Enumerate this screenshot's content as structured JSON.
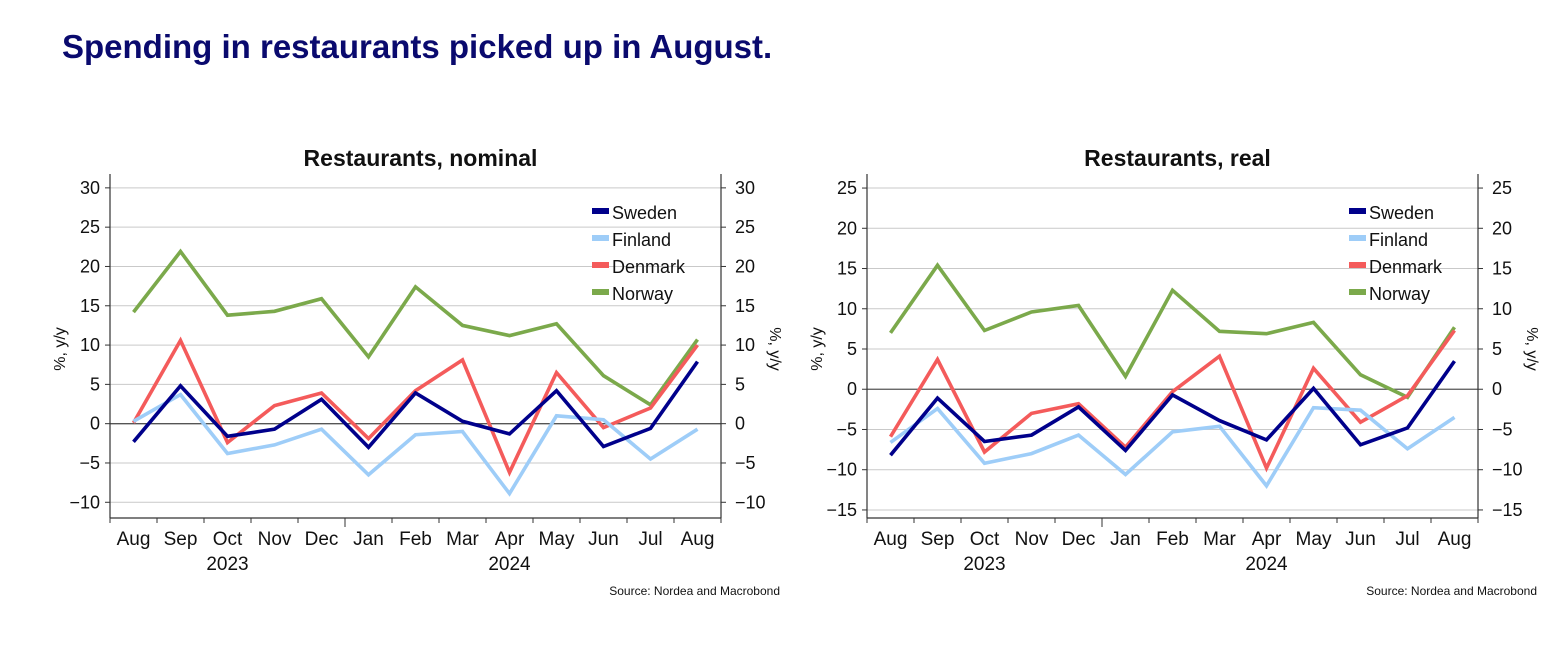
{
  "page": {
    "headline": "Spending in restaurants picked up in August."
  },
  "chart_data": [
    {
      "type": "line",
      "title": "Restaurants, nominal",
      "ylabel_left": "%, y/y",
      "ylabel_right": "%, y/y",
      "categories": [
        "Aug",
        "Sep",
        "Oct",
        "Nov",
        "Dec",
        "Jan",
        "Feb",
        "Mar",
        "Apr",
        "May",
        "Jun",
        "Jul",
        "Aug"
      ],
      "year_labels": [
        {
          "label": "2023",
          "category_index": 2
        },
        {
          "label": "2024",
          "category_index": 8
        }
      ],
      "ylim": [
        -12,
        31
      ],
      "yticks": [
        -10,
        -5,
        0,
        5,
        10,
        15,
        20,
        25,
        30
      ],
      "grid": true,
      "legend_position": "top-right",
      "source": "Source: Nordea and Macrobond",
      "series": [
        {
          "name": "Sweden",
          "color": "#00008b",
          "values": [
            -2.3,
            4.8,
            -1.6,
            -0.7,
            3.1,
            -3.0,
            3.9,
            0.3,
            -1.3,
            4.2,
            -2.9,
            -0.6,
            7.9
          ]
        },
        {
          "name": "Finland",
          "color": "#9ecdf8",
          "values": [
            0.3,
            3.7,
            -3.8,
            -2.7,
            -0.7,
            -6.5,
            -1.4,
            -1.0,
            -8.9,
            1.0,
            0.5,
            -4.5,
            -0.7
          ]
        },
        {
          "name": "Denmark",
          "color": "#f45b5b",
          "values": [
            0.1,
            10.6,
            -2.4,
            2.3,
            3.9,
            -1.9,
            4.2,
            8.1,
            -6.2,
            6.5,
            -0.5,
            2.0,
            10.0
          ]
        },
        {
          "name": "Norway",
          "color": "#7ba94b",
          "values": [
            14.2,
            21.9,
            13.8,
            14.3,
            15.9,
            8.5,
            17.4,
            12.5,
            11.2,
            12.7,
            6.1,
            2.4,
            10.7
          ]
        }
      ]
    },
    {
      "type": "line",
      "title": "Restaurants, real",
      "ylabel_left": "%, y/y",
      "ylabel_right": "%, y/y",
      "categories": [
        "Aug",
        "Sep",
        "Oct",
        "Nov",
        "Dec",
        "Jan",
        "Feb",
        "Mar",
        "Apr",
        "May",
        "Jun",
        "Jul",
        "Aug"
      ],
      "year_labels": [
        {
          "label": "2023",
          "category_index": 2
        },
        {
          "label": "2024",
          "category_index": 8
        }
      ],
      "ylim": [
        -16,
        26
      ],
      "yticks": [
        -15,
        -10,
        -5,
        0,
        5,
        10,
        15,
        20,
        25
      ],
      "grid": true,
      "legend_position": "top-right",
      "source": "Source: Nordea and Macrobond",
      "series": [
        {
          "name": "Sweden",
          "color": "#00008b",
          "values": [
            -8.2,
            -1.1,
            -6.5,
            -5.7,
            -2.2,
            -7.6,
            -0.7,
            -3.9,
            -6.3,
            0.1,
            -6.9,
            -4.8,
            3.5
          ]
        },
        {
          "name": "Finland",
          "color": "#9ecdf8",
          "values": [
            -6.6,
            -2.4,
            -9.2,
            -8.0,
            -5.7,
            -10.6,
            -5.3,
            -4.6,
            -12.0,
            -2.3,
            -2.6,
            -7.4,
            -3.5
          ]
        },
        {
          "name": "Denmark",
          "color": "#f45b5b",
          "values": [
            -5.9,
            3.7,
            -7.8,
            -3.0,
            -1.8,
            -7.2,
            -0.3,
            4.1,
            -9.8,
            2.6,
            -4.1,
            -0.8,
            7.3
          ]
        },
        {
          "name": "Norway",
          "color": "#7ba94b",
          "values": [
            7.0,
            15.4,
            7.3,
            9.6,
            10.4,
            1.6,
            12.3,
            7.2,
            6.9,
            8.3,
            1.8,
            -1.0,
            7.7
          ]
        }
      ]
    }
  ]
}
